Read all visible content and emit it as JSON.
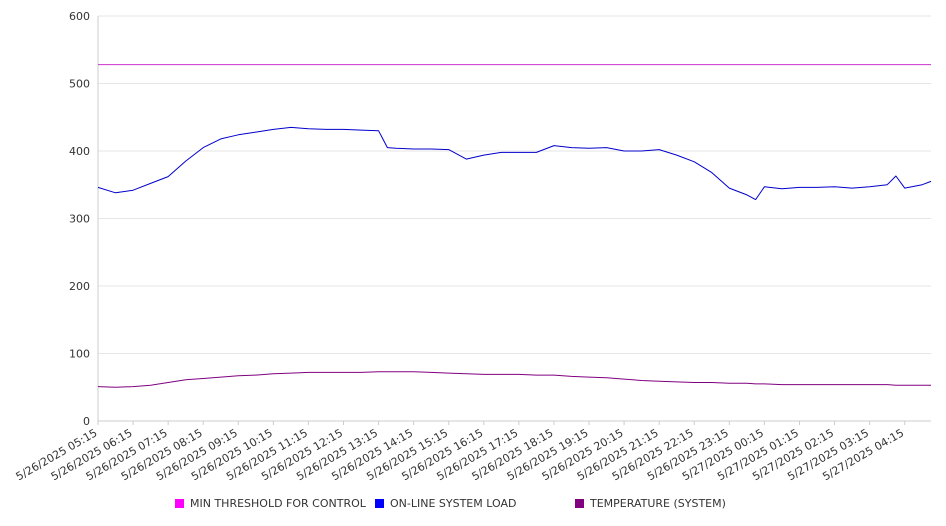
{
  "chart_data": {
    "type": "line",
    "title": "",
    "xlabel": "",
    "ylabel": "",
    "ylim": [
      0,
      600
    ],
    "yticks": [
      0,
      100,
      200,
      300,
      400,
      500,
      600
    ],
    "x_tick_labels": [
      "5/26/2025 05:15",
      "5/26/2025 06:15",
      "5/26/2025 07:15",
      "5/26/2025 08:15",
      "5/26/2025 09:15",
      "5/26/2025 10:15",
      "5/26/2025 11:15",
      "5/26/2025 12:15",
      "5/26/2025 13:15",
      "5/26/2025 14:15",
      "5/26/2025 15:15",
      "5/26/2025 16:15",
      "5/26/2025 17:15",
      "5/26/2025 18:15",
      "5/26/2025 19:15",
      "5/26/2025 20:15",
      "5/26/2025 21:15",
      "5/26/2025 22:15",
      "5/26/2025 23:15",
      "5/27/2025 00:15",
      "5/27/2025 01:15",
      "5/27/2025 02:15",
      "5/27/2025 03:15",
      "5/27/2025 04:15"
    ],
    "x": [
      "5/26/2025 05:15",
      "5/26/2025 05:45",
      "5/26/2025 06:15",
      "5/26/2025 06:45",
      "5/26/2025 07:15",
      "5/26/2025 07:45",
      "5/26/2025 08:15",
      "5/26/2025 08:45",
      "5/26/2025 09:15",
      "5/26/2025 09:45",
      "5/26/2025 10:15",
      "5/26/2025 10:45",
      "5/26/2025 11:15",
      "5/26/2025 11:45",
      "5/26/2025 12:15",
      "5/26/2025 12:45",
      "5/26/2025 13:15",
      "5/26/2025 13:30",
      "5/26/2025 13:45",
      "5/26/2025 14:15",
      "5/26/2025 14:45",
      "5/26/2025 15:15",
      "5/26/2025 15:45",
      "5/26/2025 16:15",
      "5/26/2025 16:45",
      "5/26/2025 17:15",
      "5/26/2025 17:45",
      "5/26/2025 18:15",
      "5/26/2025 18:45",
      "5/26/2025 19:15",
      "5/26/2025 19:45",
      "5/26/2025 20:15",
      "5/26/2025 20:45",
      "5/26/2025 21:15",
      "5/26/2025 21:45",
      "5/26/2025 22:15",
      "5/26/2025 22:45",
      "5/26/2025 23:15",
      "5/26/2025 23:45",
      "5/27/2025 00:00",
      "5/27/2025 00:15",
      "5/27/2025 00:45",
      "5/27/2025 01:15",
      "5/27/2025 01:45",
      "5/27/2025 02:15",
      "5/27/2025 02:45",
      "5/27/2025 03:15",
      "5/27/2025 03:45",
      "5/27/2025 04:00",
      "5/27/2025 04:15",
      "5/27/2025 04:45",
      "5/27/2025 05:00"
    ],
    "series": [
      {
        "name": "MIN THRESHOLD FOR CONTROL",
        "color": "#cc33cc",
        "values": [
          528,
          528,
          528,
          528,
          528,
          528,
          528,
          528,
          528,
          528,
          528,
          528,
          528,
          528,
          528,
          528,
          528,
          528,
          528,
          528,
          528,
          528,
          528,
          528,
          528,
          528,
          528,
          528,
          528,
          528,
          528,
          528,
          528,
          528,
          528,
          528,
          528,
          528,
          528,
          528,
          528,
          528,
          528,
          528,
          528,
          528,
          528,
          528,
          528,
          528,
          528,
          528
        ]
      },
      {
        "name": "ON-LINE SYSTEM LOAD",
        "color": "#0000cc",
        "values": [
          346,
          338,
          342,
          352,
          362,
          385,
          405,
          418,
          424,
          428,
          432,
          435,
          433,
          432,
          432,
          431,
          430,
          405,
          404,
          403,
          403,
          402,
          388,
          394,
          398,
          398,
          398,
          408,
          405,
          404,
          405,
          400,
          400,
          402,
          394,
          384,
          368,
          345,
          335,
          328,
          347,
          344,
          346,
          346,
          347,
          345,
          347,
          350,
          363,
          345,
          350,
          355
        ]
      },
      {
        "name": "TEMPERATURE (SYSTEM)",
        "color": "#800080",
        "values": [
          51,
          50,
          51,
          53,
          57,
          61,
          63,
          65,
          67,
          68,
          70,
          71,
          72,
          72,
          72,
          72,
          73,
          73,
          73,
          73,
          72,
          71,
          70,
          69,
          69,
          69,
          68,
          68,
          66,
          65,
          64,
          62,
          60,
          59,
          58,
          57,
          57,
          56,
          56,
          55,
          55,
          54,
          54,
          54,
          54,
          54,
          54,
          54,
          53,
          53,
          53,
          53
        ]
      }
    ],
    "legend_position": "bottom",
    "grid": true
  }
}
